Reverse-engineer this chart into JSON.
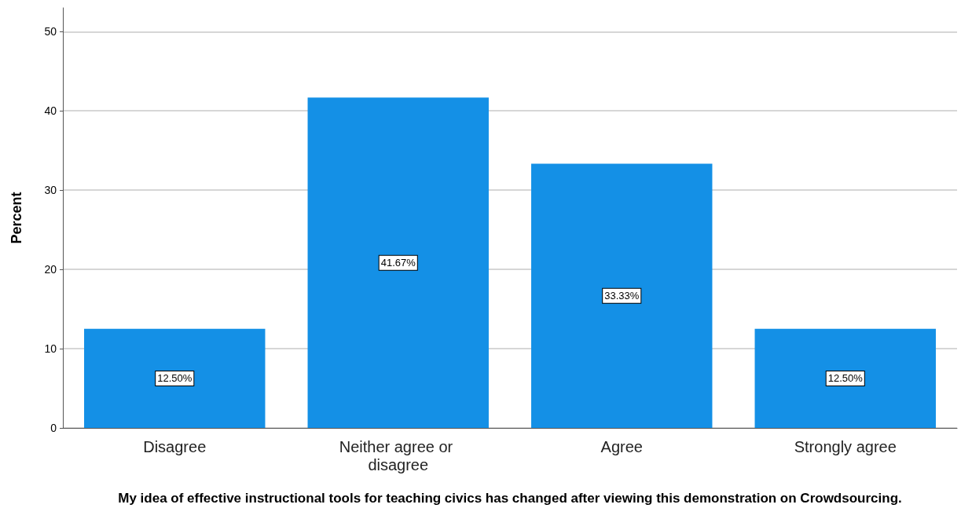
{
  "chart_data": {
    "type": "bar",
    "xlabel": "My idea of effective instructional tools for teaching civics has changed after viewing this demonstration on Crowdsourcing.",
    "ylabel": "Percent",
    "categories": [
      "Disagree",
      "Neither agree or disagree",
      "Agree",
      "Strongly agree"
    ],
    "values": [
      12.5,
      41.67,
      33.33,
      12.5
    ],
    "value_labels": [
      "12.50%",
      "41.67%",
      "33.33%",
      "12.50%"
    ],
    "color": "#1490e6",
    "ylim": [
      0,
      53
    ],
    "yticks": [
      0,
      10,
      20,
      30,
      40,
      50
    ],
    "grid": "y"
  }
}
